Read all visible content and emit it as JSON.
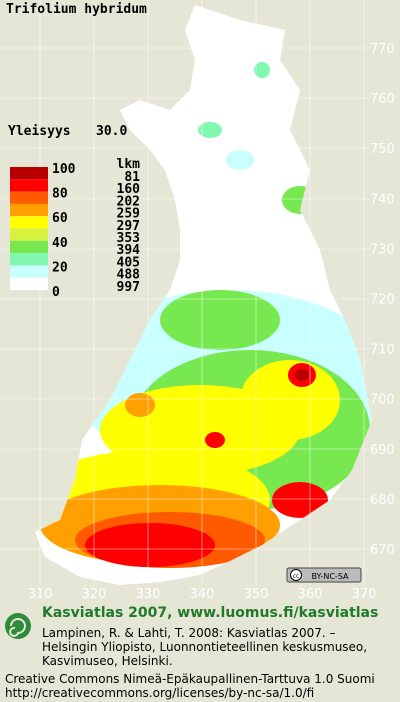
{
  "title": "Trifolium hybridum",
  "frequency": {
    "label": "Yleisyys",
    "value": "30.0"
  },
  "legend": {
    "scale": [
      100,
      80,
      60,
      40,
      20,
      0
    ],
    "count_header": "lkm",
    "counts": [
      81,
      160,
      202,
      259,
      297,
      353,
      394,
      405,
      488,
      997
    ],
    "colors": [
      "#b80000",
      "#ff0000",
      "#ff5a00",
      "#ffa000",
      "#ffff00",
      "#d8f040",
      "#78e850",
      "#80f8b0",
      "#c8ffff",
      "#ffffff"
    ]
  },
  "grid": {
    "y_labels": [
      770,
      760,
      750,
      740,
      730,
      720,
      710,
      700,
      690,
      680,
      670
    ],
    "x_labels": [
      310,
      320,
      330,
      340,
      350,
      360,
      370
    ]
  },
  "badge": "BY-NC-SA",
  "footer": {
    "site": "Kasviatlas 2007, www.luomus.fi/kasviatlas",
    "citation": [
      "Lampinen, R. & Lahti, T. 2008: Kasviatlas 2007. –",
      "Helsingin Yliopisto, Luonnontieteellinen keskusmuseo,",
      "Kasvimuseo, Helsinki."
    ],
    "license": [
      "Creative Commons Nimeä-Epäkaupallinen-Tarttuva 1.0 Suomi",
      "http://creativecommons.org/licenses/by-nc-sa/1.0/fi"
    ]
  }
}
